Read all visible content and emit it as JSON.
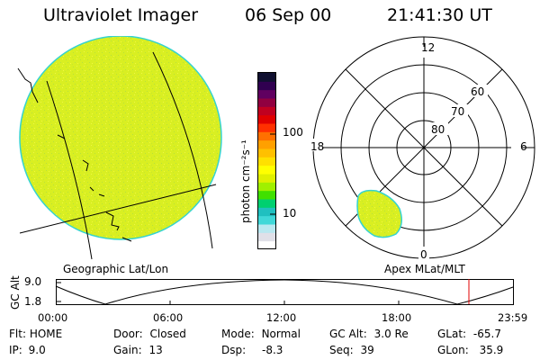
{
  "header": {
    "instrument": "Ultraviolet Imager",
    "date": "06 Sep 00",
    "time": "21:41:30 UT"
  },
  "geo_panel": {
    "label": "Geographic Lat/Lon"
  },
  "polar_panel": {
    "label": "Apex MLat/MLT",
    "mlt_labels": {
      "top": "12",
      "left": "18",
      "right": "6",
      "bottom": "0"
    },
    "lat_labels": [
      "80",
      "70",
      "60"
    ]
  },
  "colorbar": {
    "unit_label": "photon cm⁻²s⁻¹",
    "ticks": [
      "100",
      "10"
    ],
    "colors": [
      "#ffffff",
      "#e0e0e8",
      "#b8e8f0",
      "#40d8d8",
      "#20c0c0",
      "#00d070",
      "#40e000",
      "#a0f000",
      "#e0f000",
      "#ffff00",
      "#ffe000",
      "#ffc000",
      "#ffa000",
      "#ff7000",
      "#ff3000",
      "#e00000",
      "#c00020",
      "#900040",
      "#600060",
      "#300050",
      "#101030"
    ]
  },
  "altitude_plot": {
    "ylabel": "GC Alt",
    "yticks": [
      "9.0",
      "1.8"
    ],
    "xticks": [
      "00:00",
      "06:00",
      "12:00",
      "18:00",
      "23:59"
    ]
  },
  "status": {
    "flt_label": "Flt:",
    "flt_value": "HOME",
    "ip_label": "IP:",
    "ip_value": "9.0",
    "door_label": "Door:",
    "door_value": "Closed",
    "gain_label": "Gain:",
    "gain_value": "13",
    "mode_label": "Mode:",
    "mode_value": "Normal",
    "dsp_label": "Dsp:",
    "dsp_value": "-8.3",
    "gcalt_label": "GC Alt:",
    "gcalt_value": "3.0 Re",
    "seq_label": "Seq:",
    "seq_value": "39",
    "glat_label": "GLat:",
    "glat_value": "-65.7",
    "glon_label": "GLon:",
    "glon_value": "35.9"
  },
  "colors": {
    "aurora": "#d8ef1e",
    "aurora_edge": "#34d3d0",
    "marker": "#e00000"
  }
}
